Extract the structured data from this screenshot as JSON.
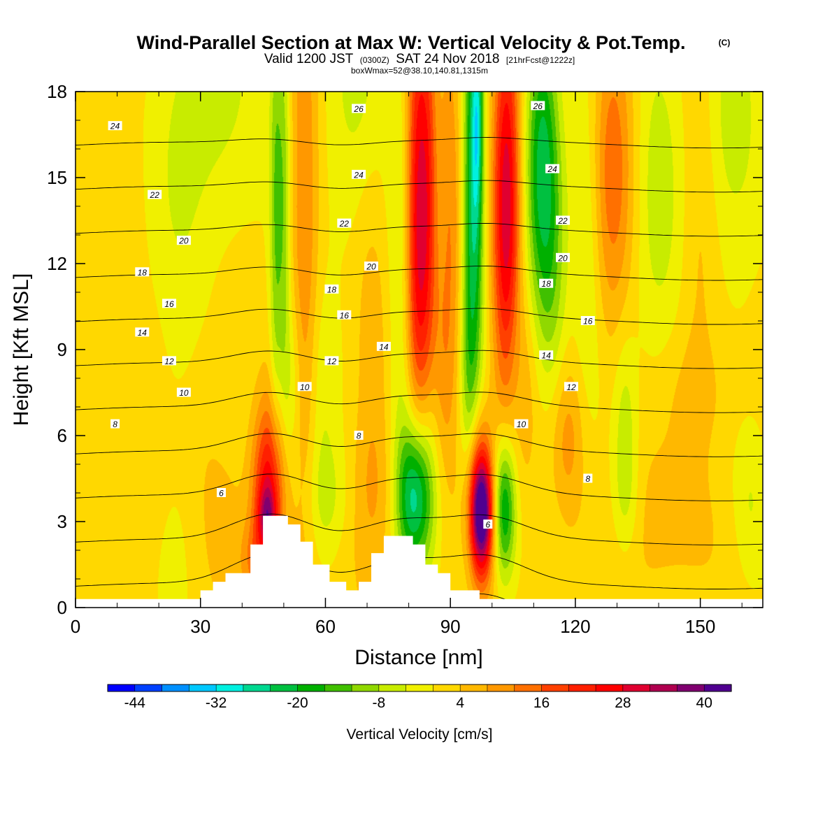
{
  "title": {
    "main": "Wind-Parallel Section at Max W: Vertical Velocity & Pot.Temp.",
    "copyright": "(C)",
    "valid_prefix": "Valid 1200 JST",
    "zulu": "(0300Z)",
    "valid_date": "SAT 24 Nov 2018",
    "forecast": "[21hrFcst@1222z]",
    "box_info": "boxWmax=52@38.10,140.81,1315m"
  },
  "chart_data": {
    "type": "heatmap",
    "xlabel": "Distance [nm]",
    "ylabel": "Height [Kft MSL]",
    "xlim": [
      0,
      165
    ],
    "ylim": [
      0,
      18
    ],
    "x_ticks": [
      0,
      30,
      60,
      90,
      120,
      150
    ],
    "y_ticks": [
      0,
      3,
      6,
      9,
      12,
      15,
      18
    ],
    "colorbar": {
      "title": "Vertical Velocity [cm/s]",
      "labels": [
        "-44",
        "-32",
        "-20",
        "-8",
        "4",
        "16",
        "28",
        "40"
      ],
      "min": -48,
      "max": 44,
      "step": 4,
      "colors": [
        "#0000ff",
        "#0040ff",
        "#0090ff",
        "#00c8ff",
        "#00f0e0",
        "#00d890",
        "#00c040",
        "#00b000",
        "#40c000",
        "#90d800",
        "#c8ec00",
        "#f0f000",
        "#ffd800",
        "#ffb800",
        "#ff9800",
        "#ff7000",
        "#ff4000",
        "#ff2000",
        "#ff0000",
        "#e00030",
        "#b00050",
        "#800070",
        "#500090"
      ]
    },
    "terrain": [
      [
        0,
        0.3
      ],
      [
        30,
        0.3
      ],
      [
        30,
        0.6
      ],
      [
        33,
        0.6
      ],
      [
        33,
        0.9
      ],
      [
        36,
        0.9
      ],
      [
        36,
        1.2
      ],
      [
        42,
        1.2
      ],
      [
        42,
        2.2
      ],
      [
        45,
        2.2
      ],
      [
        45,
        3.2
      ],
      [
        51,
        3.2
      ],
      [
        51,
        2.9
      ],
      [
        54,
        2.9
      ],
      [
        54,
        2.3
      ],
      [
        57,
        2.3
      ],
      [
        57,
        1.5
      ],
      [
        61,
        1.5
      ],
      [
        61,
        0.9
      ],
      [
        65,
        0.9
      ],
      [
        65,
        0.6
      ],
      [
        68,
        0.6
      ],
      [
        68,
        0.9
      ],
      [
        71,
        0.9
      ],
      [
        71,
        1.9
      ],
      [
        74,
        1.9
      ],
      [
        74,
        2.5
      ],
      [
        81,
        2.5
      ],
      [
        81,
        2.2
      ],
      [
        84,
        2.2
      ],
      [
        84,
        1.5
      ],
      [
        87,
        1.5
      ],
      [
        87,
        1.2
      ],
      [
        90,
        1.2
      ],
      [
        90,
        0.6
      ],
      [
        97,
        0.6
      ],
      [
        97,
        0.3
      ],
      [
        165,
        0.3
      ]
    ],
    "w_features": [
      {
        "x": 46.5,
        "y": 4.0,
        "sx": 2.8,
        "sy": 2.2,
        "w": 26
      },
      {
        "x": 46,
        "y": 3.2,
        "sx": 1.5,
        "sy": 0.7,
        "w": 14
      },
      {
        "x": 43,
        "y": 1.6,
        "sx": 2.5,
        "sy": 1.0,
        "w": 8
      },
      {
        "x": 48,
        "y": 13.5,
        "sx": 1.0,
        "sy": 6.0,
        "w": -11
      },
      {
        "x": 50,
        "y": 14.0,
        "sx": 1.1,
        "sy": 5.5,
        "w": -11
      },
      {
        "x": 52,
        "y": 7.5,
        "sx": 1.8,
        "sy": 2.5,
        "w": -9
      },
      {
        "x": 55,
        "y": 12.0,
        "sx": 2.5,
        "sy": 8.0,
        "w": 12
      },
      {
        "x": 58,
        "y": 7.5,
        "sx": 3.0,
        "sy": 3.0,
        "w": -7
      },
      {
        "x": 60,
        "y": 3.8,
        "sx": 4.0,
        "sy": 1.5,
        "w": -6
      },
      {
        "x": 33,
        "y": 17.5,
        "sx": 9.0,
        "sy": 3.5,
        "w": -7
      },
      {
        "x": 25,
        "y": 10.0,
        "sx": 4.0,
        "sy": 7.0,
        "w": -3
      },
      {
        "x": 30,
        "y": 6.0,
        "sx": 4.0,
        "sy": 2.0,
        "w": 2
      },
      {
        "x": 35,
        "y": 3.0,
        "sx": 4.0,
        "sy": 2.0,
        "w": 4
      },
      {
        "x": 68,
        "y": 17.5,
        "sx": 5.5,
        "sy": 4.0,
        "w": -7
      },
      {
        "x": 71,
        "y": 9.0,
        "sx": 3.0,
        "sy": 5.0,
        "w": 6
      },
      {
        "x": 72,
        "y": 4.0,
        "sx": 5.0,
        "sy": 2.0,
        "w": 4
      },
      {
        "x": 82.5,
        "y": 13.5,
        "sx": 2.2,
        "sy": 5.5,
        "w": 29
      },
      {
        "x": 85,
        "y": 14.5,
        "sx": 1.4,
        "sy": 4.0,
        "w": 8
      },
      {
        "x": 78,
        "y": 12.0,
        "sx": 2.0,
        "sy": 6.0,
        "w": -6
      },
      {
        "x": 81.5,
        "y": 3.8,
        "sx": 3.0,
        "sy": 1.8,
        "w": -26
      },
      {
        "x": 83,
        "y": 5.5,
        "sx": 4.0,
        "sy": 2.5,
        "w": -8
      },
      {
        "x": 88,
        "y": 7.5,
        "sx": 2.0,
        "sy": 3.0,
        "w": 6
      },
      {
        "x": 90,
        "y": 13.5,
        "sx": 2.2,
        "sy": 5.5,
        "w": 10
      },
      {
        "x": 94,
        "y": 7.0,
        "sx": 1.5,
        "sy": 3.5,
        "w": -7
      },
      {
        "x": 95.5,
        "y": 14.5,
        "sx": 1.8,
        "sy": 5.5,
        "w": -26
      },
      {
        "x": 96.5,
        "y": 17.0,
        "sx": 0.9,
        "sy": 2.5,
        "w": -14
      },
      {
        "x": 97.5,
        "y": 3.2,
        "sx": 2.0,
        "sy": 1.5,
        "w": 40
      },
      {
        "x": 96.5,
        "y": 4.5,
        "sx": 2.5,
        "sy": 2.0,
        "w": 14
      },
      {
        "x": 103.5,
        "y": 13.5,
        "sx": 2.3,
        "sy": 5.5,
        "w": 30
      },
      {
        "x": 103,
        "y": 3.5,
        "sx": 2.0,
        "sy": 1.8,
        "w": -26
      },
      {
        "x": 105,
        "y": 8.5,
        "sx": 2.5,
        "sy": 2.5,
        "w": -7
      },
      {
        "x": 108,
        "y": 8.0,
        "sx": 2.0,
        "sy": 2.5,
        "w": 6
      },
      {
        "x": 112,
        "y": 15.5,
        "sx": 2.8,
        "sy": 4.0,
        "w": -22
      },
      {
        "x": 115,
        "y": 11.0,
        "sx": 2.5,
        "sy": 4.0,
        "w": -7
      },
      {
        "x": 118,
        "y": 6.0,
        "sx": 3.0,
        "sy": 2.0,
        "w": 9
      },
      {
        "x": 123,
        "y": 13.0,
        "sx": 2.5,
        "sy": 4.5,
        "w": -7
      },
      {
        "x": 129,
        "y": 15.5,
        "sx": 3.5,
        "sy": 4.0,
        "w": 13
      },
      {
        "x": 132,
        "y": 6.0,
        "sx": 2.0,
        "sy": 2.5,
        "w": -8
      },
      {
        "x": 132,
        "y": 3.5,
        "sx": 3.0,
        "sy": 1.5,
        "w": -5
      },
      {
        "x": 140,
        "y": 15.0,
        "sx": 4.0,
        "sy": 5.0,
        "w": -7
      },
      {
        "x": 150,
        "y": 14.0,
        "sx": 3.0,
        "sy": 5.0,
        "w": 4
      },
      {
        "x": 158,
        "y": 16.5,
        "sx": 5.0,
        "sy": 3.5,
        "w": -8
      },
      {
        "x": 162,
        "y": 3.5,
        "sx": 3.0,
        "sy": 2.0,
        "w": -6
      },
      {
        "x": 150,
        "y": 7.5,
        "sx": 8.0,
        "sy": 1.5,
        "w": 3
      },
      {
        "x": 140,
        "y": 3.0,
        "sx": 10.0,
        "sy": 2.0,
        "w": 5
      }
    ],
    "theta_contours": {
      "levels": [
        4,
        6,
        8,
        10,
        12,
        14,
        16,
        18,
        20,
        22,
        24,
        26
      ],
      "labels": [
        {
          "text": "24",
          "x": 9.5,
          "y": 16.8
        },
        {
          "text": "22",
          "x": 19,
          "y": 14.4
        },
        {
          "text": "20",
          "x": 26,
          "y": 12.8
        },
        {
          "text": "18",
          "x": 16,
          "y": 11.7
        },
        {
          "text": "16",
          "x": 22.5,
          "y": 10.6
        },
        {
          "text": "14",
          "x": 16,
          "y": 9.6
        },
        {
          "text": "12",
          "x": 22.5,
          "y": 8.6
        },
        {
          "text": "10",
          "x": 26,
          "y": 7.5
        },
        {
          "text": "8",
          "x": 9.5,
          "y": 6.4
        },
        {
          "text": "6",
          "x": 35,
          "y": 4.0
        },
        {
          "text": "26",
          "x": 68,
          "y": 17.4
        },
        {
          "text": "24",
          "x": 68,
          "y": 15.1
        },
        {
          "text": "22",
          "x": 64.5,
          "y": 13.4
        },
        {
          "text": "20",
          "x": 71,
          "y": 11.9
        },
        {
          "text": "18",
          "x": 61.5,
          "y": 11.1
        },
        {
          "text": "16",
          "x": 64.5,
          "y": 10.2
        },
        {
          "text": "14",
          "x": 74,
          "y": 9.1
        },
        {
          "text": "12",
          "x": 61.5,
          "y": 8.6
        },
        {
          "text": "10",
          "x": 55,
          "y": 7.7
        },
        {
          "text": "8",
          "x": 68,
          "y": 6.0
        },
        {
          "text": "26",
          "x": 111,
          "y": 17.5
        },
        {
          "text": "24",
          "x": 114.5,
          "y": 15.3
        },
        {
          "text": "22",
          "x": 117,
          "y": 13.5
        },
        {
          "text": "20",
          "x": 117,
          "y": 12.2
        },
        {
          "text": "18",
          "x": 113,
          "y": 11.3
        },
        {
          "text": "16",
          "x": 123,
          "y": 10.0
        },
        {
          "text": "14",
          "x": 113,
          "y": 8.8
        },
        {
          "text": "12",
          "x": 119,
          "y": 7.7
        },
        {
          "text": "10",
          "x": 107,
          "y": 6.4
        },
        {
          "text": "8",
          "x": 123,
          "y": 4.5
        },
        {
          "text": "6",
          "x": 99,
          "y": 2.9
        }
      ]
    }
  }
}
